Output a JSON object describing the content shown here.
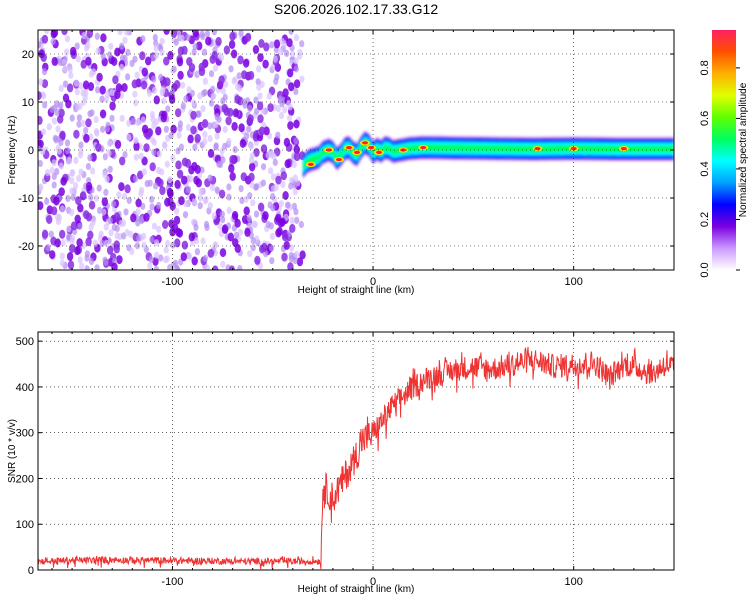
{
  "title": "S206.2026.102.17.33.G12",
  "chart_data": [
    {
      "type": "heatmap",
      "name": "spectrogram",
      "xlabel": "Height of straight line (km)",
      "ylabel": "Frequency (Hz)",
      "xlim": [
        -167,
        150
      ],
      "ylim": [
        -25,
        25
      ],
      "xticks": [
        -100,
        0,
        100
      ],
      "yticks": [
        -20,
        -10,
        0,
        10,
        20
      ],
      "noise_region_x": [
        -167,
        -35
      ],
      "signal_region_x": [
        -35,
        150
      ],
      "signal_center_trace": {
        "x": [
          -35,
          -33,
          -31,
          -29,
          -27,
          -25,
          -22,
          -20,
          -18,
          -16,
          -14,
          -12,
          -10,
          -8,
          -6,
          -4,
          -2,
          0,
          2,
          4,
          6,
          8,
          10,
          14,
          18,
          25,
          40,
          60,
          80,
          100,
          120,
          150
        ],
        "y": [
          -3.5,
          -2.5,
          -2.0,
          -1.8,
          -1.5,
          -0.5,
          0.0,
          -0.5,
          -1.8,
          -1.0,
          0.3,
          0.5,
          -0.5,
          -1.0,
          0.5,
          1.5,
          1.0,
          -0.5,
          0.2,
          -0.3,
          0.5,
          0.3,
          -0.3,
          0.0,
          0.3,
          0.5,
          0.4,
          0.3,
          0.2,
          0.3,
          0.2,
          0.2
        ]
      },
      "peak_points": {
        "x": [
          -31,
          -22,
          -17,
          -12,
          -8,
          -4,
          -1,
          3,
          15,
          25,
          82,
          100,
          125
        ],
        "y": [
          -3,
          0,
          -2,
          0.5,
          -0.5,
          1.5,
          0.5,
          -0.5,
          0,
          0.5,
          0.3,
          0.3,
          0.3
        ]
      },
      "noise_amplitude": "0.1 to 0.3"
    },
    {
      "type": "colorbar",
      "name": "colorscale",
      "label": "Normalized spectral amplitude",
      "range": [
        0.0,
        0.95
      ],
      "ticks": [
        "0.0",
        "0.2",
        "0.4",
        "0.6",
        "0.8"
      ],
      "colors": [
        "#ffffff",
        "#cc99ff",
        "#7a00e0",
        "#0000ff",
        "#00a0ff",
        "#00ffff",
        "#00ff60",
        "#60ff00",
        "#e0ff00",
        "#ffb000",
        "#ff5000",
        "#ff2060"
      ]
    },
    {
      "type": "line",
      "name": "snr",
      "xlabel": "Height of straight line (km)",
      "ylabel": "SNR (10 * v/v)",
      "xlim": [
        -167,
        150
      ],
      "ylim": [
        0,
        520
      ],
      "xticks": [
        -100,
        0,
        100
      ],
      "yticks": [
        0,
        100,
        200,
        300,
        400,
        500
      ],
      "series": [
        {
          "name": "SNR",
          "color": "#ee3333",
          "x": [
            -167,
            -150,
            -130,
            -110,
            -90,
            -70,
            -50,
            -40,
            -35,
            -26,
            -25,
            -20,
            -15,
            -10,
            -5,
            0,
            5,
            10,
            15,
            20,
            25,
            30,
            35,
            40,
            50,
            60,
            70,
            80,
            90,
            100,
            110,
            118,
            125,
            130,
            140,
            145,
            150
          ],
          "y": [
            22,
            24,
            25,
            24,
            23,
            22,
            22,
            22,
            22,
            22,
            200,
            170,
            210,
            250,
            300,
            310,
            340,
            370,
            390,
            410,
            425,
            435,
            440,
            448,
            455,
            450,
            460,
            470,
            455,
            460,
            465,
            430,
            460,
            455,
            440,
            460,
            455
          ],
          "noise_amp_before": 18,
          "noise_amp_after": 110
        }
      ]
    }
  ]
}
